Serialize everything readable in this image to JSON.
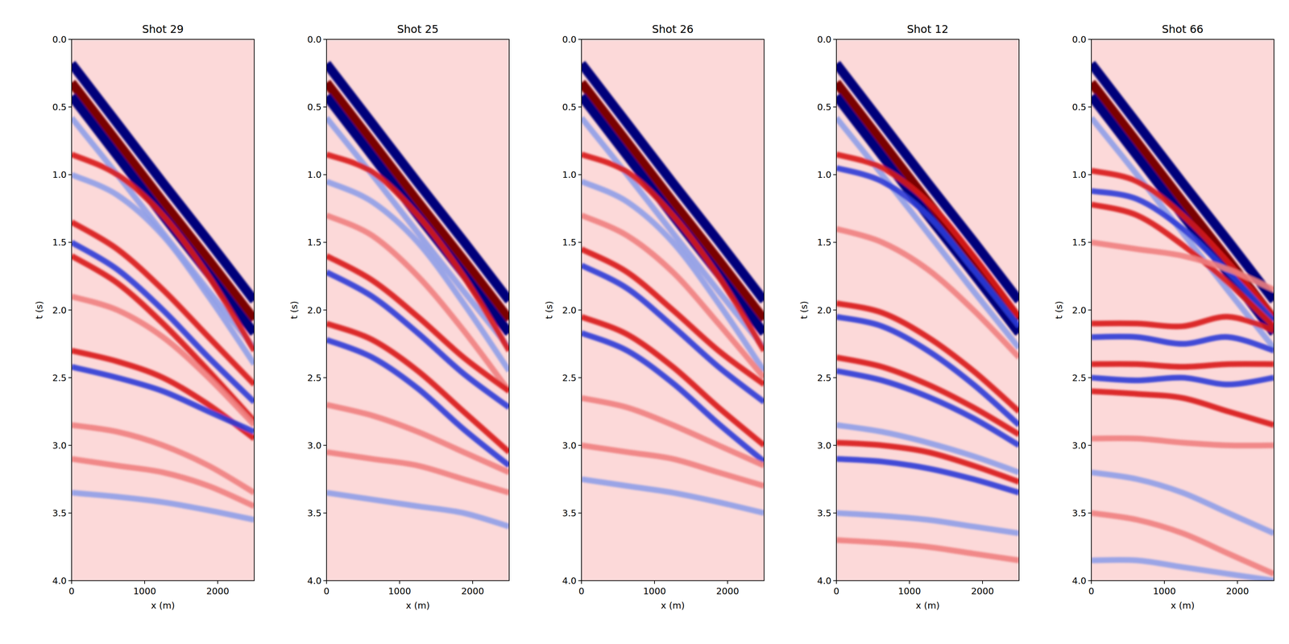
{
  "chart_data": [
    {
      "type": "line",
      "title": "Shot 29",
      "x_label": "x (m)",
      "y_label": "t (s)",
      "xlim": [
        0,
        2500
      ],
      "ylim": [
        4,
        0
      ],
      "xticks": [
        0,
        1000,
        2000
      ],
      "yticks": [
        {
          "value": 0,
          "label": "0.0"
        },
        0.5,
        {
          "value": 1,
          "label": "1.0"
        },
        1.5,
        {
          "value": 2,
          "label": "2.0"
        },
        2.5,
        {
          "value": 3,
          "label": "3.0"
        },
        3.5,
        {
          "value": 4,
          "label": "4.0"
        }
      ],
      "x": [
        0,
        625,
        1250,
        1875,
        2500
      ],
      "series": [
        {
          "color": "#00007a",
          "values": [
            0.18,
            0.62,
            1.06,
            1.49,
            1.93
          ]
        },
        {
          "color": "#7a0000",
          "values": [
            0.32,
            0.76,
            1.2,
            1.63,
            2.07
          ]
        },
        {
          "color": "#00007a",
          "values": [
            0.42,
            0.86,
            1.3,
            1.73,
            2.17
          ]
        },
        {
          "color": "#8f9fe8",
          "values": [
            0.58,
            1.0,
            1.43,
            1.86,
            2.28
          ]
        },
        {
          "color": "#d81b1b",
          "values": [
            0.85,
            1.0,
            1.3,
            1.75,
            2.3
          ]
        },
        {
          "color": "#8f9fe8",
          "values": [
            1.0,
            1.15,
            1.45,
            1.9,
            2.4
          ]
        },
        {
          "color": "#d81b1b",
          "values": [
            1.35,
            1.55,
            1.85,
            2.2,
            2.55
          ]
        },
        {
          "color": "#2b3bd6",
          "values": [
            1.5,
            1.7,
            2.0,
            2.35,
            2.68
          ]
        },
        {
          "color": "#d81b1b",
          "values": [
            1.6,
            1.8,
            2.1,
            2.45,
            2.82
          ]
        },
        {
          "color": "#f08080",
          "values": [
            1.9,
            2.0,
            2.2,
            2.5,
            2.85
          ]
        },
        {
          "color": "#d81b1b",
          "values": [
            2.3,
            2.38,
            2.5,
            2.7,
            2.95
          ]
        },
        {
          "color": "#2b3bd6",
          "values": [
            2.42,
            2.5,
            2.6,
            2.75,
            2.9
          ]
        },
        {
          "color": "#f08080",
          "values": [
            2.85,
            2.9,
            3.0,
            3.15,
            3.35
          ]
        },
        {
          "color": "#f08080",
          "values": [
            3.1,
            3.15,
            3.2,
            3.3,
            3.45
          ]
        },
        {
          "color": "#8f9fe8",
          "values": [
            3.35,
            3.38,
            3.42,
            3.48,
            3.55
          ]
        }
      ]
    },
    {
      "type": "line",
      "title": "Shot 25",
      "x_label": "x (m)",
      "y_label": "t (s)",
      "xlim": [
        0,
        2500
      ],
      "ylim": [
        4,
        0
      ],
      "xticks": [
        0,
        1000,
        2000
      ],
      "yticks": [
        {
          "value": 0,
          "label": "0.0"
        },
        0.5,
        {
          "value": 1,
          "label": "1.0"
        },
        1.5,
        {
          "value": 2,
          "label": "2.0"
        },
        2.5,
        {
          "value": 3,
          "label": "3.0"
        },
        3.5,
        {
          "value": 4,
          "label": "4.0"
        }
      ],
      "x": [
        0,
        625,
        1250,
        1875,
        2500
      ],
      "series": [
        {
          "color": "#00007a",
          "values": [
            0.18,
            0.62,
            1.06,
            1.49,
            1.93
          ]
        },
        {
          "color": "#7a0000",
          "values": [
            0.32,
            0.76,
            1.2,
            1.63,
            2.07
          ]
        },
        {
          "color": "#00007a",
          "values": [
            0.42,
            0.86,
            1.3,
            1.73,
            2.17
          ]
        },
        {
          "color": "#8f9fe8",
          "values": [
            0.58,
            1.0,
            1.43,
            1.86,
            2.28
          ]
        },
        {
          "color": "#d81b1b",
          "values": [
            0.85,
            0.98,
            1.3,
            1.75,
            2.3
          ]
        },
        {
          "color": "#8f9fe8",
          "values": [
            1.05,
            1.2,
            1.5,
            1.95,
            2.45
          ]
        },
        {
          "color": "#f08080",
          "values": [
            1.3,
            1.45,
            1.75,
            2.15,
            2.6
          ]
        },
        {
          "color": "#d81b1b",
          "values": [
            1.6,
            1.78,
            2.05,
            2.35,
            2.6
          ]
        },
        {
          "color": "#2b3bd6",
          "values": [
            1.72,
            1.9,
            2.17,
            2.47,
            2.72
          ]
        },
        {
          "color": "#d81b1b",
          "values": [
            2.1,
            2.22,
            2.45,
            2.75,
            3.05
          ]
        },
        {
          "color": "#2b3bd6",
          "values": [
            2.22,
            2.35,
            2.58,
            2.88,
            3.15
          ]
        },
        {
          "color": "#f08080",
          "values": [
            2.7,
            2.78,
            2.9,
            3.05,
            3.2
          ]
        },
        {
          "color": "#f08080",
          "values": [
            3.05,
            3.1,
            3.15,
            3.25,
            3.35
          ]
        },
        {
          "color": "#8f9fe8",
          "values": [
            3.35,
            3.4,
            3.45,
            3.5,
            3.6
          ]
        }
      ]
    },
    {
      "type": "line",
      "title": "Shot 26",
      "x_label": "x (m)",
      "y_label": "t (s)",
      "xlim": [
        0,
        2500
      ],
      "ylim": [
        4,
        0
      ],
      "xticks": [
        0,
        1000,
        2000
      ],
      "yticks": [
        {
          "value": 0,
          "label": "0.0"
        },
        0.5,
        {
          "value": 1,
          "label": "1.0"
        },
        1.5,
        {
          "value": 2,
          "label": "2.0"
        },
        2.5,
        {
          "value": 3,
          "label": "3.0"
        },
        3.5,
        {
          "value": 4,
          "label": "4.0"
        }
      ],
      "x": [
        0,
        625,
        1250,
        1875,
        2500
      ],
      "series": [
        {
          "color": "#00007a",
          "values": [
            0.18,
            0.62,
            1.06,
            1.49,
            1.93
          ]
        },
        {
          "color": "#7a0000",
          "values": [
            0.32,
            0.76,
            1.2,
            1.63,
            2.07
          ]
        },
        {
          "color": "#00007a",
          "values": [
            0.42,
            0.86,
            1.3,
            1.73,
            2.17
          ]
        },
        {
          "color": "#8f9fe8",
          "values": [
            0.58,
            1.0,
            1.43,
            1.86,
            2.28
          ]
        },
        {
          "color": "#d81b1b",
          "values": [
            0.85,
            0.98,
            1.3,
            1.75,
            2.3
          ]
        },
        {
          "color": "#8f9fe8",
          "values": [
            1.05,
            1.2,
            1.5,
            1.95,
            2.45
          ]
        },
        {
          "color": "#f08080",
          "values": [
            1.3,
            1.45,
            1.72,
            2.1,
            2.5
          ]
        },
        {
          "color": "#d81b1b",
          "values": [
            1.55,
            1.72,
            2.0,
            2.3,
            2.55
          ]
        },
        {
          "color": "#2b3bd6",
          "values": [
            1.67,
            1.84,
            2.12,
            2.42,
            2.68
          ]
        },
        {
          "color": "#d81b1b",
          "values": [
            2.05,
            2.18,
            2.42,
            2.72,
            3.0
          ]
        },
        {
          "color": "#2b3bd6",
          "values": [
            2.17,
            2.3,
            2.54,
            2.84,
            3.12
          ]
        },
        {
          "color": "#f08080",
          "values": [
            2.65,
            2.72,
            2.85,
            3.0,
            3.15
          ]
        },
        {
          "color": "#f08080",
          "values": [
            3.0,
            3.05,
            3.1,
            3.2,
            3.3
          ]
        },
        {
          "color": "#8f9fe8",
          "values": [
            3.25,
            3.3,
            3.35,
            3.42,
            3.5
          ]
        }
      ]
    },
    {
      "type": "line",
      "title": "Shot 12",
      "x_label": "x (m)",
      "y_label": "t (s)",
      "xlim": [
        0,
        2500
      ],
      "ylim": [
        4,
        0
      ],
      "xticks": [
        0,
        1000,
        2000
      ],
      "yticks": [
        {
          "value": 0,
          "label": "0.0"
        },
        0.5,
        {
          "value": 1,
          "label": "1.0"
        },
        1.5,
        {
          "value": 2,
          "label": "2.0"
        },
        2.5,
        {
          "value": 3,
          "label": "3.0"
        },
        3.5,
        {
          "value": 4,
          "label": "4.0"
        }
      ],
      "x": [
        0,
        625,
        1250,
        1875,
        2500
      ],
      "series": [
        {
          "color": "#00007a",
          "values": [
            0.18,
            0.62,
            1.06,
            1.49,
            1.93
          ]
        },
        {
          "color": "#7a0000",
          "values": [
            0.32,
            0.76,
            1.2,
            1.63,
            2.07
          ]
        },
        {
          "color": "#00007a",
          "values": [
            0.42,
            0.86,
            1.3,
            1.73,
            2.17
          ]
        },
        {
          "color": "#8f9fe8",
          "values": [
            0.58,
            1.0,
            1.43,
            1.86,
            2.28
          ]
        },
        {
          "color": "#d81b1b",
          "values": [
            0.85,
            0.95,
            1.2,
            1.6,
            2.05
          ]
        },
        {
          "color": "#2b3bd6",
          "values": [
            0.95,
            1.05,
            1.3,
            1.7,
            2.12
          ]
        },
        {
          "color": "#f08080",
          "values": [
            1.4,
            1.5,
            1.7,
            2.0,
            2.35
          ]
        },
        {
          "color": "#d81b1b",
          "values": [
            1.95,
            2.02,
            2.2,
            2.45,
            2.75
          ]
        },
        {
          "color": "#2b3bd6",
          "values": [
            2.05,
            2.12,
            2.3,
            2.55,
            2.85
          ]
        },
        {
          "color": "#d81b1b",
          "values": [
            2.35,
            2.42,
            2.55,
            2.72,
            2.92
          ]
        },
        {
          "color": "#2b3bd6",
          "values": [
            2.45,
            2.52,
            2.64,
            2.8,
            3.0
          ]
        },
        {
          "color": "#8f9fe8",
          "values": [
            2.85,
            2.9,
            2.98,
            3.08,
            3.2
          ]
        },
        {
          "color": "#d81b1b",
          "values": [
            2.98,
            3.0,
            3.05,
            3.15,
            3.27
          ]
        },
        {
          "color": "#2b3bd6",
          "values": [
            3.1,
            3.12,
            3.17,
            3.25,
            3.35
          ]
        },
        {
          "color": "#8f9fe8",
          "values": [
            3.5,
            3.52,
            3.55,
            3.6,
            3.65
          ]
        },
        {
          "color": "#f08080",
          "values": [
            3.7,
            3.72,
            3.75,
            3.8,
            3.85
          ]
        }
      ]
    },
    {
      "type": "line",
      "title": "Shot 66",
      "x_label": "x (m)",
      "y_label": "t (s)",
      "xlim": [
        0,
        2500
      ],
      "ylim": [
        4,
        0
      ],
      "xticks": [
        0,
        1000,
        2000
      ],
      "yticks": [
        {
          "value": 0,
          "label": "0.0"
        },
        0.5,
        {
          "value": 1,
          "label": "1.0"
        },
        1.5,
        {
          "value": 2,
          "label": "2.0"
        },
        2.5,
        {
          "value": 3,
          "label": "3.0"
        },
        3.5,
        {
          "value": 4,
          "label": "4.0"
        }
      ],
      "x": [
        0,
        625,
        1250,
        1875,
        2500
      ],
      "series": [
        {
          "color": "#00007a",
          "values": [
            0.18,
            0.62,
            1.06,
            1.49,
            1.93
          ]
        },
        {
          "color": "#7a0000",
          "values": [
            0.32,
            0.76,
            1.2,
            1.63,
            2.07
          ]
        },
        {
          "color": "#00007a",
          "values": [
            0.42,
            0.86,
            1.3,
            1.73,
            2.17
          ]
        },
        {
          "color": "#8f9fe8",
          "values": [
            0.58,
            1.0,
            1.43,
            1.86,
            2.28
          ]
        },
        {
          "color": "#d81b1b",
          "values": [
            0.97,
            1.05,
            1.3,
            1.65,
            2.05
          ]
        },
        {
          "color": "#2b3bd6",
          "values": [
            1.12,
            1.18,
            1.4,
            1.72,
            2.08
          ]
        },
        {
          "color": "#d81b1b",
          "values": [
            1.22,
            1.3,
            1.52,
            1.8,
            2.12
          ]
        },
        {
          "color": "#f08080",
          "values": [
            1.5,
            1.55,
            1.6,
            1.7,
            1.85
          ]
        },
        {
          "color": "#d81b1b",
          "values": [
            2.1,
            2.1,
            2.12,
            2.05,
            2.15
          ]
        },
        {
          "color": "#2b3bd6",
          "values": [
            2.2,
            2.2,
            2.25,
            2.2,
            2.3
          ]
        },
        {
          "color": "#d81b1b",
          "values": [
            2.4,
            2.4,
            2.42,
            2.4,
            2.4
          ]
        },
        {
          "color": "#2b3bd6",
          "values": [
            2.5,
            2.52,
            2.5,
            2.55,
            2.5
          ]
        },
        {
          "color": "#d81b1b",
          "values": [
            2.6,
            2.62,
            2.65,
            2.75,
            2.85
          ]
        },
        {
          "color": "#f08080",
          "values": [
            2.95,
            2.95,
            2.98,
            3.0,
            3.0
          ]
        },
        {
          "color": "#8f9fe8",
          "values": [
            3.2,
            3.25,
            3.35,
            3.5,
            3.65
          ]
        },
        {
          "color": "#f08080",
          "values": [
            3.5,
            3.55,
            3.65,
            3.8,
            3.95
          ]
        },
        {
          "color": "#8f9fe8",
          "values": [
            3.85,
            3.85,
            3.9,
            3.95,
            4.0
          ]
        }
      ]
    }
  ]
}
